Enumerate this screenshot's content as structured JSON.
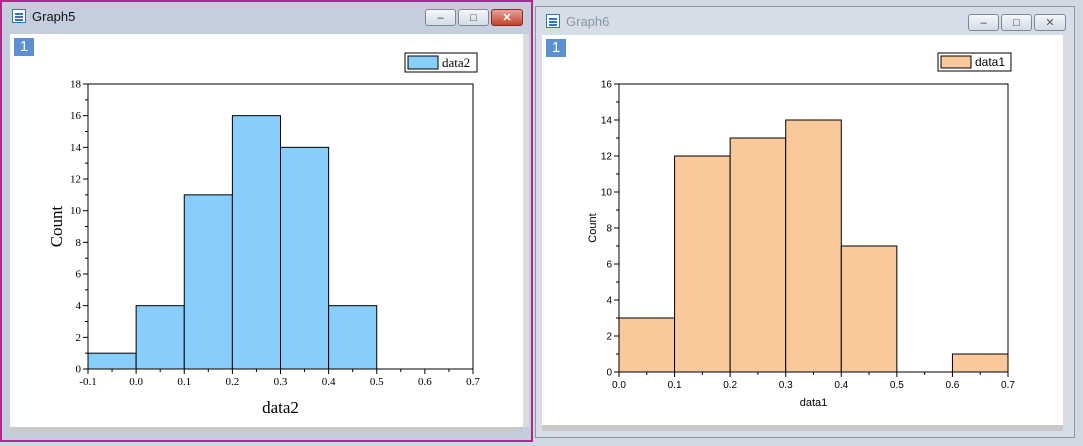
{
  "windows": [
    {
      "title": "Graph5",
      "layer_label": "1",
      "controls": {
        "minimize": "–",
        "restore": "□",
        "close": "✕"
      },
      "chart_data": {
        "type": "bar",
        "title": "",
        "xlabel": "data2",
        "ylabel": "Count",
        "legend": {
          "entries": [
            "data2"
          ],
          "placement": "top-right"
        },
        "bin_edges": [
          -0.1,
          0.0,
          0.1,
          0.2,
          0.3,
          0.4,
          0.5
        ],
        "values": [
          1,
          4,
          11,
          16,
          14,
          4
        ],
        "xlim": [
          -0.1,
          0.7
        ],
        "ylim": [
          0,
          18
        ],
        "xticks": [
          "-0.1",
          "0.0",
          "0.1",
          "0.2",
          "0.3",
          "0.4",
          "0.5",
          "0.6",
          "0.7"
        ],
        "yticks": [
          "0",
          "2",
          "4",
          "6",
          "8",
          "10",
          "12",
          "14",
          "16",
          "18"
        ],
        "color": "#87cefa",
        "grid": false
      }
    },
    {
      "title": "Graph6",
      "layer_label": "1",
      "controls": {
        "minimize": "–",
        "restore": "□",
        "close": "✕"
      },
      "chart_data": {
        "type": "bar",
        "title": "",
        "xlabel": "data1",
        "ylabel": "Count",
        "legend": {
          "entries": [
            "data1"
          ],
          "placement": "top-right"
        },
        "bin_edges": [
          0.0,
          0.1,
          0.2,
          0.3,
          0.4,
          0.5,
          0.6,
          0.7
        ],
        "values": [
          3,
          12,
          13,
          14,
          7,
          0,
          1
        ],
        "xlim": [
          0.0,
          0.7
        ],
        "ylim": [
          0,
          16
        ],
        "xticks": [
          "0.0",
          "0.1",
          "0.2",
          "0.3",
          "0.4",
          "0.5",
          "0.6",
          "0.7"
        ],
        "yticks": [
          "0",
          "2",
          "4",
          "6",
          "8",
          "10",
          "12",
          "14",
          "16"
        ],
        "color": "#f9c89b",
        "grid": false
      }
    }
  ]
}
